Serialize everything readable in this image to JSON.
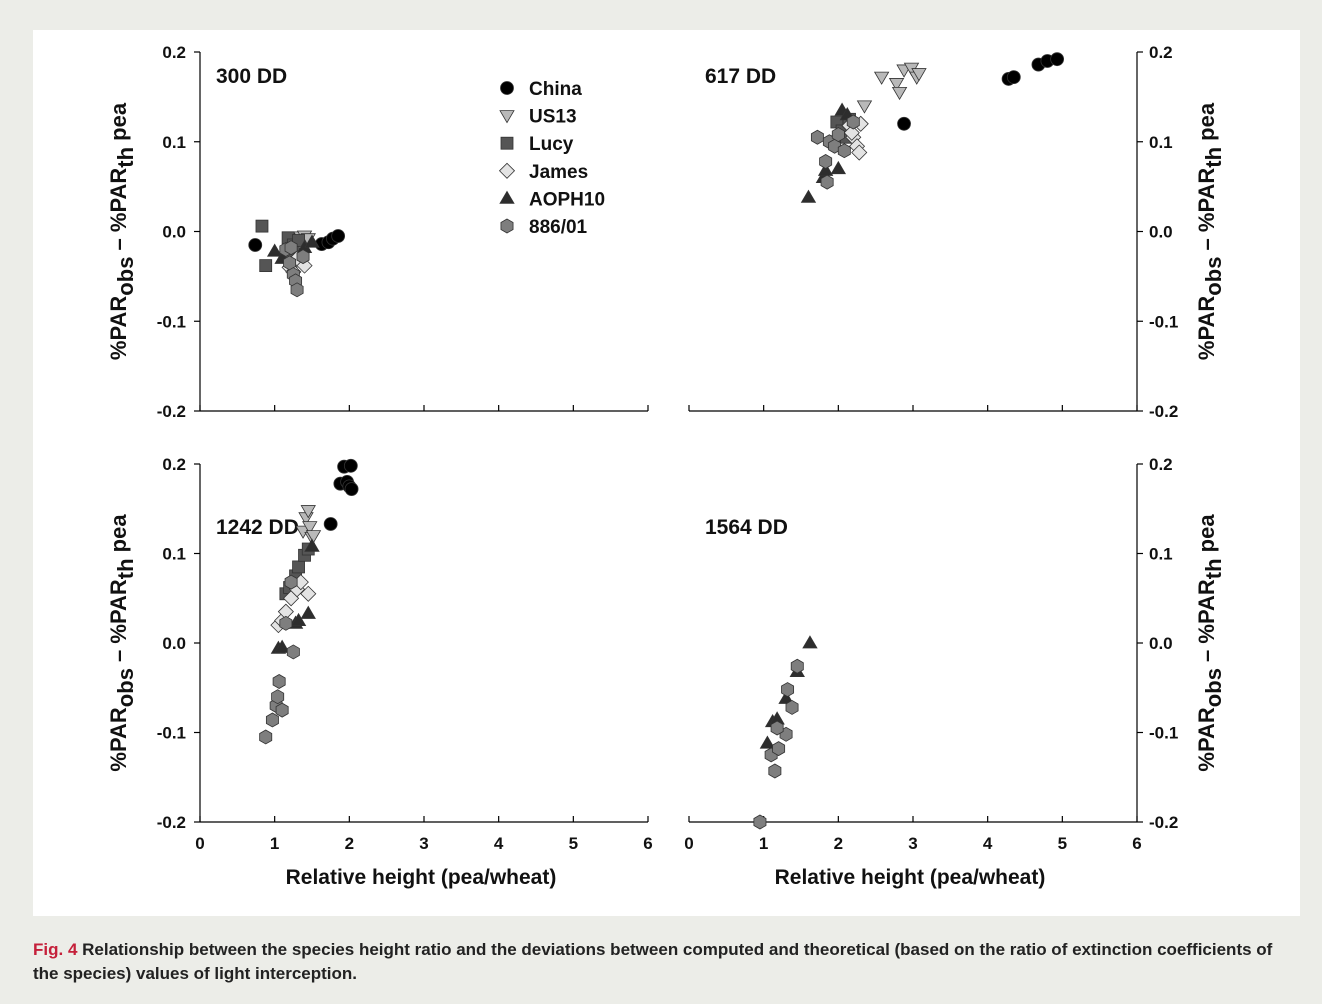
{
  "caption": {
    "label": "Fig. 4",
    "text": "Relationship between the species height ratio and the deviations between computed and theoretical (based on the ratio of extinction coefficients of the species) values of light interception."
  },
  "colors": {
    "background": "#ecede8",
    "panel": "#ffffff",
    "caption_label": "#c5203a",
    "China": "#000000",
    "US13": "#b9b9b9",
    "Lucy": "#555555",
    "James": "#e3e3e3",
    "AOPH10": "#2d2d2d",
    "886/01": "#7e7e7e"
  },
  "legend": [
    {
      "name": "China",
      "marker": "circle"
    },
    {
      "name": "US13",
      "marker": "triangle-down"
    },
    {
      "name": "Lucy",
      "marker": "square"
    },
    {
      "name": "James",
      "marker": "diamond"
    },
    {
      "name": "AOPH10",
      "marker": "triangle-up"
    },
    {
      "name": "886/01",
      "marker": "hexagon"
    }
  ],
  "axis_labels": {
    "xlabel": "Relative height (pea/wheat)",
    "ylabel_parts": [
      "%PAR",
      "obs",
      " – %PAR",
      "th",
      " pea"
    ]
  },
  "chart_data": [
    {
      "type": "scatter",
      "title": "300 DD",
      "xlim": [
        0,
        6
      ],
      "ylim": [
        -0.2,
        0.2
      ],
      "xticks": [
        "0",
        "1",
        "2",
        "3",
        "4",
        "5",
        "6"
      ],
      "yticks": [
        "-0.2",
        "-0.1",
        "0.0",
        "0.1",
        "0.2"
      ],
      "series": [
        {
          "name": "China",
          "x": [
            0.74,
            1.63,
            1.72,
            1.78,
            1.85
          ],
          "y": [
            -0.015,
            -0.014,
            -0.012,
            -0.008,
            -0.005
          ]
        },
        {
          "name": "US13",
          "x": [
            1.35,
            1.4,
            1.45,
            1.3,
            1.2
          ],
          "y": [
            -0.006,
            -0.005,
            -0.008,
            -0.01,
            -0.012
          ]
        },
        {
          "name": "Lucy",
          "x": [
            0.83,
            0.88,
            1.18,
            1.25,
            1.32,
            1.22
          ],
          "y": [
            0.006,
            -0.038,
            -0.007,
            -0.015,
            -0.01,
            -0.03
          ]
        },
        {
          "name": "James",
          "x": [
            1.2,
            1.3,
            1.4,
            1.25
          ],
          "y": [
            -0.04,
            -0.03,
            -0.038,
            -0.045
          ]
        },
        {
          "name": "AOPH10",
          "x": [
            1.0,
            1.1,
            1.4,
            1.5
          ],
          "y": [
            -0.022,
            -0.03,
            -0.018,
            -0.012
          ]
        },
        {
          "name": "886/01",
          "x": [
            1.15,
            1.2,
            1.25,
            1.28,
            1.3,
            1.38,
            1.22
          ],
          "y": [
            -0.02,
            -0.035,
            -0.048,
            -0.055,
            -0.065,
            -0.028,
            -0.018
          ]
        }
      ]
    },
    {
      "type": "scatter",
      "title": "617 DD",
      "xlim": [
        0,
        6
      ],
      "ylim": [
        -0.2,
        0.2
      ],
      "xticks": [
        "0",
        "1",
        "2",
        "3",
        "4",
        "5",
        "6"
      ],
      "yticks": [
        "-0.2",
        "-0.1",
        "0.0",
        "0.1",
        "0.2"
      ],
      "series": [
        {
          "name": "China",
          "x": [
            2.88,
            4.28,
            4.35,
            4.68,
            4.8,
            4.93
          ],
          "y": [
            0.12,
            0.17,
            0.172,
            0.186,
            0.19,
            0.192
          ]
        },
        {
          "name": "US13",
          "x": [
            2.58,
            2.78,
            2.82,
            2.88,
            2.98,
            3.05,
            3.08,
            2.35
          ],
          "y": [
            0.172,
            0.165,
            0.155,
            0.18,
            0.182,
            0.172,
            0.176,
            0.14
          ]
        },
        {
          "name": "Lucy",
          "x": [
            1.98,
            2.05,
            2.1,
            2.15,
            1.95
          ],
          "y": [
            0.122,
            0.112,
            0.105,
            0.125,
            0.1
          ]
        },
        {
          "name": "James",
          "x": [
            2.15,
            2.2,
            2.25,
            2.28,
            2.3,
            2.18
          ],
          "y": [
            0.118,
            0.105,
            0.095,
            0.088,
            0.12,
            0.11
          ]
        },
        {
          "name": "AOPH10",
          "x": [
            1.6,
            1.8,
            1.83,
            2.0,
            2.05,
            2.12
          ],
          "y": [
            0.038,
            0.06,
            0.068,
            0.07,
            0.135,
            0.13
          ]
        },
        {
          "name": "886/01",
          "x": [
            1.72,
            1.83,
            1.85,
            1.88,
            1.95,
            2.0,
            2.2,
            2.08
          ],
          "y": [
            0.105,
            0.078,
            0.055,
            0.1,
            0.095,
            0.108,
            0.122,
            0.09
          ]
        }
      ]
    },
    {
      "type": "scatter",
      "title": "1242 DD",
      "xlim": [
        0,
        6
      ],
      "ylim": [
        -0.2,
        0.2
      ],
      "xticks": [
        "0",
        "1",
        "2",
        "3",
        "4",
        "5",
        "6"
      ],
      "yticks": [
        "-0.2",
        "-0.1",
        "0.0",
        "0.1",
        "0.2"
      ],
      "series": [
        {
          "name": "China",
          "x": [
            1.75,
            1.88,
            1.93,
            1.97,
            2.0,
            2.02,
            2.03
          ],
          "y": [
            0.133,
            0.178,
            0.197,
            0.18,
            0.175,
            0.198,
            0.172
          ]
        },
        {
          "name": "US13",
          "x": [
            1.38,
            1.42,
            1.45,
            1.47,
            1.5,
            1.52
          ],
          "y": [
            0.125,
            0.14,
            0.148,
            0.13,
            0.118,
            0.12
          ]
        },
        {
          "name": "Lucy",
          "x": [
            1.15,
            1.2,
            1.28,
            1.32,
            1.4,
            1.45
          ],
          "y": [
            0.055,
            0.062,
            0.075,
            0.085,
            0.098,
            0.105
          ]
        },
        {
          "name": "James",
          "x": [
            1.05,
            1.1,
            1.15,
            1.22,
            1.3,
            1.35,
            1.45
          ],
          "y": [
            0.02,
            0.025,
            0.035,
            0.05,
            0.06,
            0.068,
            0.055
          ]
        },
        {
          "name": "AOPH10",
          "x": [
            1.05,
            1.1,
            1.28,
            1.32,
            1.45,
            1.5
          ],
          "y": [
            -0.006,
            -0.005,
            0.022,
            0.025,
            0.033,
            0.108
          ]
        },
        {
          "name": "886/01",
          "x": [
            0.88,
            0.97,
            1.02,
            1.04,
            1.06,
            1.1,
            1.15,
            1.22,
            1.25
          ],
          "y": [
            -0.105,
            -0.086,
            -0.07,
            -0.06,
            -0.043,
            -0.075,
            0.022,
            0.068,
            -0.01
          ]
        }
      ]
    },
    {
      "type": "scatter",
      "title": "1564 DD",
      "xlim": [
        0,
        6
      ],
      "ylim": [
        -0.2,
        0.2
      ],
      "xticks": [
        "0",
        "1",
        "2",
        "3",
        "4",
        "5",
        "6"
      ],
      "yticks": [
        "-0.2",
        "-0.1",
        "0.0",
        "0.1",
        "0.2"
      ],
      "series": [
        {
          "name": "AOPH10",
          "x": [
            1.05,
            1.12,
            1.18,
            1.3,
            1.45,
            1.62
          ],
          "y": [
            -0.112,
            -0.088,
            -0.085,
            -0.062,
            -0.032,
            0.0
          ]
        },
        {
          "name": "886/01",
          "x": [
            0.95,
            1.1,
            1.15,
            1.2,
            1.3,
            1.32,
            1.38,
            1.45,
            1.18
          ],
          "y": [
            -0.2,
            -0.125,
            -0.143,
            -0.118,
            -0.102,
            -0.052,
            -0.072,
            -0.026,
            -0.095
          ]
        }
      ]
    }
  ]
}
